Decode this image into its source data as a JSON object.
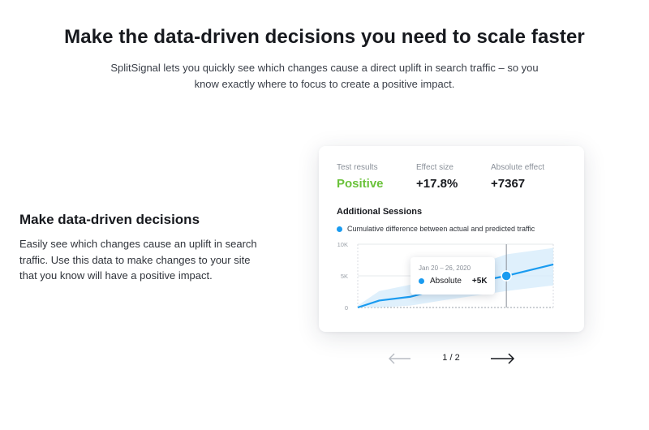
{
  "hero": {
    "title": "Make the data-driven decisions you need to scale faster",
    "subtitle": "SplitSignal lets you quickly see which changes cause a direct uplift in search traffic – so you know exactly where to focus to create a positive impact."
  },
  "feature": {
    "title": "Make data-driven decisions",
    "text": "Easily see which changes cause an uplift in search traffic. Use this data to make changes to your site that you know will have a positive impact."
  },
  "card": {
    "metrics": [
      {
        "label": "Test results",
        "value": "Positive"
      },
      {
        "label": "Effect size",
        "value": "+17.8%"
      },
      {
        "label": "Absolute effect",
        "value": "+7367"
      }
    ],
    "sessions_title": "Additional Sessions",
    "legend": "Cumulative difference between actual and predicted traffic",
    "tooltip": {
      "date": "Jan 20 – 26, 2020",
      "label": "Absolute",
      "value": "+5K"
    },
    "colors": {
      "positive": "#6ac23a",
      "line": "#1a9bf0",
      "band": "#d4ebfb"
    }
  },
  "chart_data": {
    "type": "line",
    "y_tick_labels": [
      "10K",
      "5K",
      "0"
    ],
    "ylim": [
      0,
      10000
    ],
    "xlim": [
      0,
      1
    ],
    "x": [
      0,
      0.11,
      0.27,
      0.43,
      0.76,
      1.0
    ],
    "values": [
      0,
      1100,
      1700,
      3000,
      5000,
      6800
    ],
    "band_upper": [
      300,
      2600,
      3600,
      4800,
      8400,
      9400
    ],
    "band_lower": [
      0,
      0,
      300,
      1100,
      2600,
      3500
    ],
    "highlight": {
      "x": 0.76,
      "value": 5000
    },
    "grid": true
  },
  "pager": {
    "count": "1 / 2",
    "prev_icon": "arrow-left-icon",
    "next_icon": "arrow-right-icon"
  }
}
